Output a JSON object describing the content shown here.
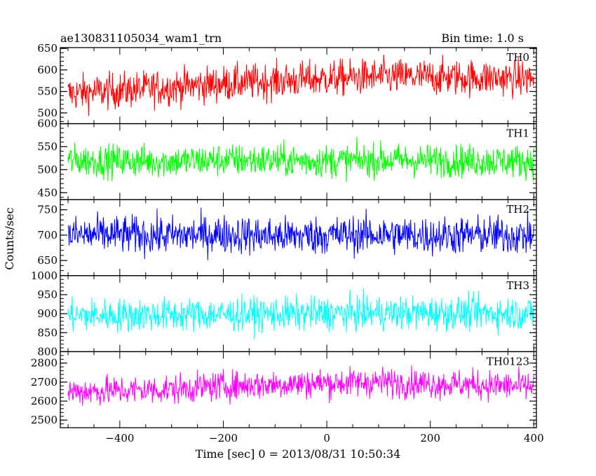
{
  "chart_data": {
    "type": "line",
    "title": "ae130831105034_wam1_trn",
    "subtitle": "Bin time: 1.0 s",
    "xlabel": "Time [sec] 0 = 2013/08/31 10:50:34",
    "ylabel": "Counts/sec",
    "xlim": [
      -515,
      405
    ],
    "x_ticks": [
      -400,
      -200,
      0,
      200,
      400
    ],
    "x_tick_labels": [
      "−400",
      "−200",
      "0",
      "200",
      "400"
    ],
    "x_range_data": [
      -500,
      400
    ],
    "grid": false,
    "panels": [
      {
        "name": "TH0",
        "color": "#ff0000",
        "ylim": [
          475,
          652
        ],
        "yticks": [
          500,
          550,
          600,
          650
        ],
        "ytick_labels": [
          "500",
          "550",
          "600",
          "650"
        ],
        "x": [
          -500,
          -400,
          -300,
          -200,
          -100,
          0,
          100,
          200,
          300,
          400
        ],
        "values": [
          545,
          552,
          560,
          568,
          574,
          580,
          584,
          583,
          582,
          580
        ],
        "spread": 38
      },
      {
        "name": "TH1",
        "color": "#00ff00",
        "ylim": [
          435,
          600
        ],
        "yticks": [
          450,
          500,
          550,
          600
        ],
        "ytick_labels": [
          "450",
          "500",
          "550",
          "600"
        ],
        "x": [
          -500,
          -400,
          -300,
          -200,
          -100,
          0,
          100,
          200,
          300,
          400
        ],
        "values": [
          520,
          519,
          518,
          521,
          520,
          519,
          521,
          520,
          519,
          518
        ],
        "spread": 32
      },
      {
        "name": "TH2",
        "color": "#0000ff",
        "ylim": [
          620,
          770
        ],
        "yticks": [
          650,
          700,
          750
        ],
        "ytick_labels": [
          "650",
          "700",
          "750"
        ],
        "x": [
          -500,
          -400,
          -300,
          -200,
          -100,
          0,
          100,
          200,
          300,
          400
        ],
        "values": [
          700,
          701,
          699,
          702,
          698,
          700,
          701,
          699,
          700,
          699
        ],
        "spread": 34
      },
      {
        "name": "TH3",
        "color": "#00ffff",
        "ylim": [
          800,
          1000
        ],
        "yticks": [
          800,
          850,
          900,
          950,
          1000
        ],
        "ytick_labels": [
          "800",
          "850",
          "900",
          "950",
          "1000"
        ],
        "x": [
          -500,
          -400,
          -300,
          -200,
          -100,
          0,
          100,
          200,
          300,
          400
        ],
        "values": [
          895,
          896,
          897,
          898,
          899,
          900,
          901,
          902,
          902,
          901
        ],
        "spread": 40
      },
      {
        "name": "TH0123",
        "color": "#ff00ff",
        "ylim": [
          2460,
          2860
        ],
        "yticks": [
          2500,
          2600,
          2700,
          2800
        ],
        "ytick_labels": [
          "2500",
          "2600",
          "2700",
          "2800"
        ],
        "x": [
          -500,
          -400,
          -300,
          -200,
          -100,
          0,
          100,
          200,
          300,
          400
        ],
        "values": [
          2650,
          2655,
          2662,
          2680,
          2688,
          2695,
          2700,
          2692,
          2685,
          2675
        ],
        "spread": 70
      }
    ]
  }
}
